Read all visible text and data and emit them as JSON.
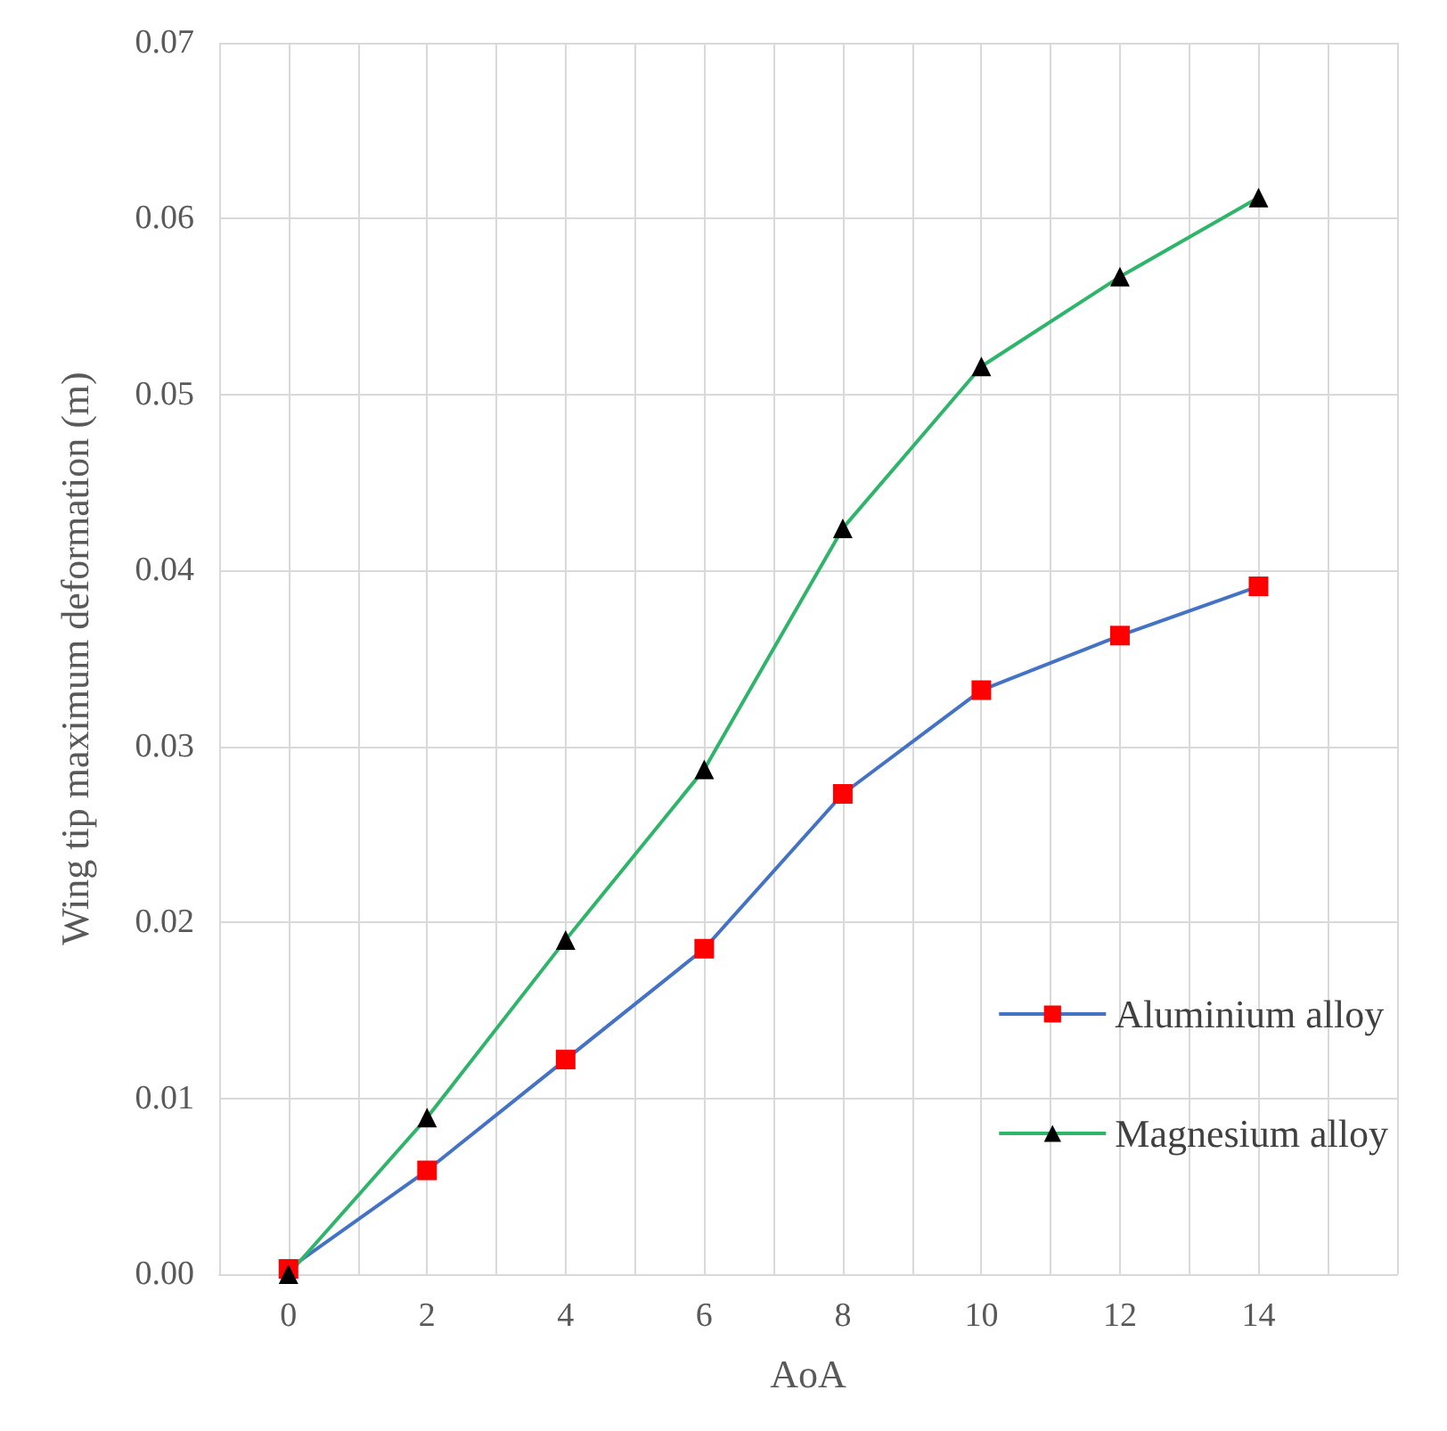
{
  "chart_data": {
    "type": "line",
    "xlabel": "AoA",
    "ylabel": "Wing tip maximum deformation (m)",
    "x": [
      0,
      2,
      4,
      6,
      8,
      10,
      12,
      14
    ],
    "series": [
      {
        "name": "Aluminium alloy",
        "color": "#4472c4",
        "marker": "square",
        "colors": [
          "#ff0000",
          "#ff0000",
          "#ff0000",
          "#ff0000",
          "#ff0000",
          "#ff0000",
          "#ff0000",
          "#ff0000"
        ],
        "values": [
          0.0003,
          0.0059,
          0.0122,
          0.0185,
          0.0273,
          0.0332,
          0.0363,
          0.0391
        ]
      },
      {
        "name": "Magnesium alloy",
        "color": "#2fb56a",
        "marker": "triangle",
        "colors": [
          "#000000",
          "#000000",
          "#000000",
          "#000000",
          "#000000",
          "#000000",
          "#000000",
          "#000000"
        ],
        "values": [
          0,
          0.0089,
          0.019,
          0.0287,
          0.0424,
          0.0516,
          0.0567,
          0.0612
        ]
      }
    ],
    "xlim": [
      -1,
      16
    ],
    "xticks": [
      {
        "value": -1,
        "label": null
      },
      0,
      {
        "value": 1,
        "label": null
      },
      2,
      {
        "value": 3,
        "label": null
      },
      4,
      {
        "value": 5,
        "label": null
      },
      6,
      {
        "value": 7,
        "label": null
      },
      8,
      {
        "value": 9,
        "label": null
      },
      10,
      {
        "value": 11,
        "label": null
      },
      12,
      {
        "value": 13,
        "label": null
      },
      14,
      {
        "value": 15,
        "label": null
      },
      {
        "value": 16,
        "label": null
      }
    ],
    "ylim": [
      0,
      0.07
    ],
    "yticks": [
      {
        "value": 0,
        "label": "0.00"
      },
      {
        "value": 0.01,
        "label": "0.01"
      },
      {
        "value": 0.02,
        "label": "0.02"
      },
      {
        "value": 0.03,
        "label": "0.03"
      },
      {
        "value": 0.04,
        "label": "0.04"
      },
      {
        "value": 0.05,
        "label": "0.05"
      },
      {
        "value": 0.06,
        "label": "0.06"
      },
      {
        "value": 0.07,
        "label": "0.07"
      }
    ],
    "grid": true,
    "legend": "right",
    "line_style": "solid"
  }
}
